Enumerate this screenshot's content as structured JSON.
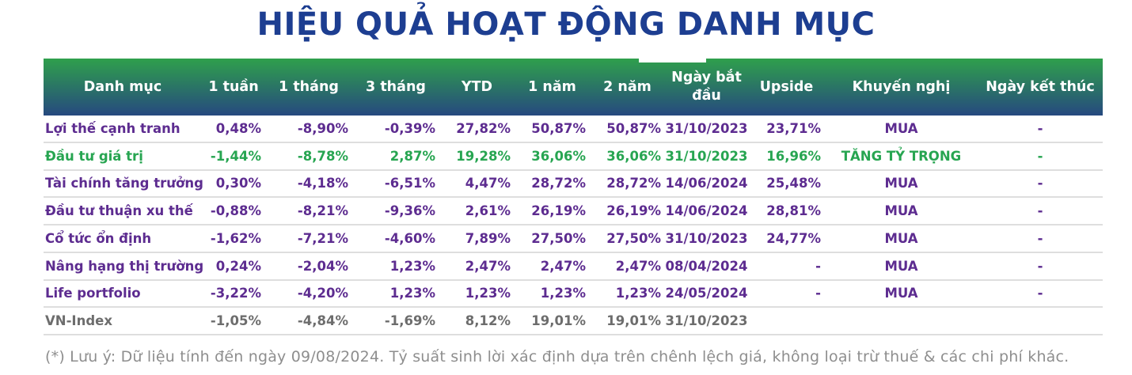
{
  "chart_data": {
    "type": "table",
    "title": "HIỆU QUẢ HOẠT ĐỘNG DANH MỤC",
    "columns": [
      "Danh mục",
      "1 tuần",
      "1 tháng",
      "3 tháng",
      "YTD",
      "1 năm",
      "2 năm",
      "Ngày bắt đầu",
      "Upside",
      "Khuyến nghị",
      "Ngày kết thúc"
    ],
    "rows": [
      {
        "color": "purple",
        "cells": [
          "Lợi thế cạnh tranh",
          "0,48%",
          "-8,90%",
          "-0,39%",
          "27,82%",
          "50,87%",
          "50,87%",
          "31/10/2023",
          "23,71%",
          "MUA",
          "-"
        ]
      },
      {
        "color": "green",
        "cells": [
          "Đầu tư giá trị",
          "-1,44%",
          "-8,78%",
          "2,87%",
          "19,28%",
          "36,06%",
          "36,06%",
          "31/10/2023",
          "16,96%",
          "TĂNG TỶ TRỌNG",
          "-"
        ]
      },
      {
        "color": "purple",
        "cells": [
          "Tài chính tăng trưởng",
          "0,30%",
          "-4,18%",
          "-6,51%",
          "4,47%",
          "28,72%",
          "28,72%",
          "14/06/2024",
          "25,48%",
          "MUA",
          "-"
        ]
      },
      {
        "color": "purple",
        "cells": [
          "Đầu tư thuận xu thế",
          "-0,88%",
          "-8,21%",
          "-9,36%",
          "2,61%",
          "26,19%",
          "26,19%",
          "14/06/2024",
          "28,81%",
          "MUA",
          "-"
        ]
      },
      {
        "color": "purple",
        "cells": [
          "Cổ tức ổn định",
          "-1,62%",
          "-7,21%",
          "-4,60%",
          "7,89%",
          "27,50%",
          "27,50%",
          "31/10/2023",
          "24,77%",
          "MUA",
          "-"
        ]
      },
      {
        "color": "purple",
        "cells": [
          "Nâng hạng thị trường",
          "0,24%",
          "-2,04%",
          "1,23%",
          "2,47%",
          "2,47%",
          "2,47%",
          "08/04/2024",
          "-",
          "MUA",
          "-"
        ]
      },
      {
        "color": "purple",
        "cells": [
          "Life portfolio",
          "-3,22%",
          "-4,20%",
          "1,23%",
          "1,23%",
          "1,23%",
          "1,23%",
          "24/05/2024",
          "-",
          "MUA",
          "-"
        ]
      },
      {
        "color": "gray",
        "cells": [
          "VN-Index",
          "-1,05%",
          "-4,84%",
          "-1,69%",
          "8,12%",
          "19,01%",
          "19,01%",
          "31/10/2023",
          "",
          "",
          ""
        ]
      }
    ],
    "footnote": "(*) Lưu ý: Dữ liệu tính đến ngày 09/08/2024. Tỷ suất sinh lời xác định dựa trên chênh lệch giá, không loại trừ thuế & các chi phí khác."
  },
  "colors": {
    "title_navy": "#1d3e91",
    "header_gradient_top": "#2fa04c",
    "header_gradient_bottom": "#26497f",
    "header_text": "#ffffff",
    "row_purple": "#5d2c90",
    "row_green": "#27a551",
    "row_gray": "#6d6d6d",
    "divider": "#dedede",
    "footnote_gray": "#8e8e8e"
  }
}
